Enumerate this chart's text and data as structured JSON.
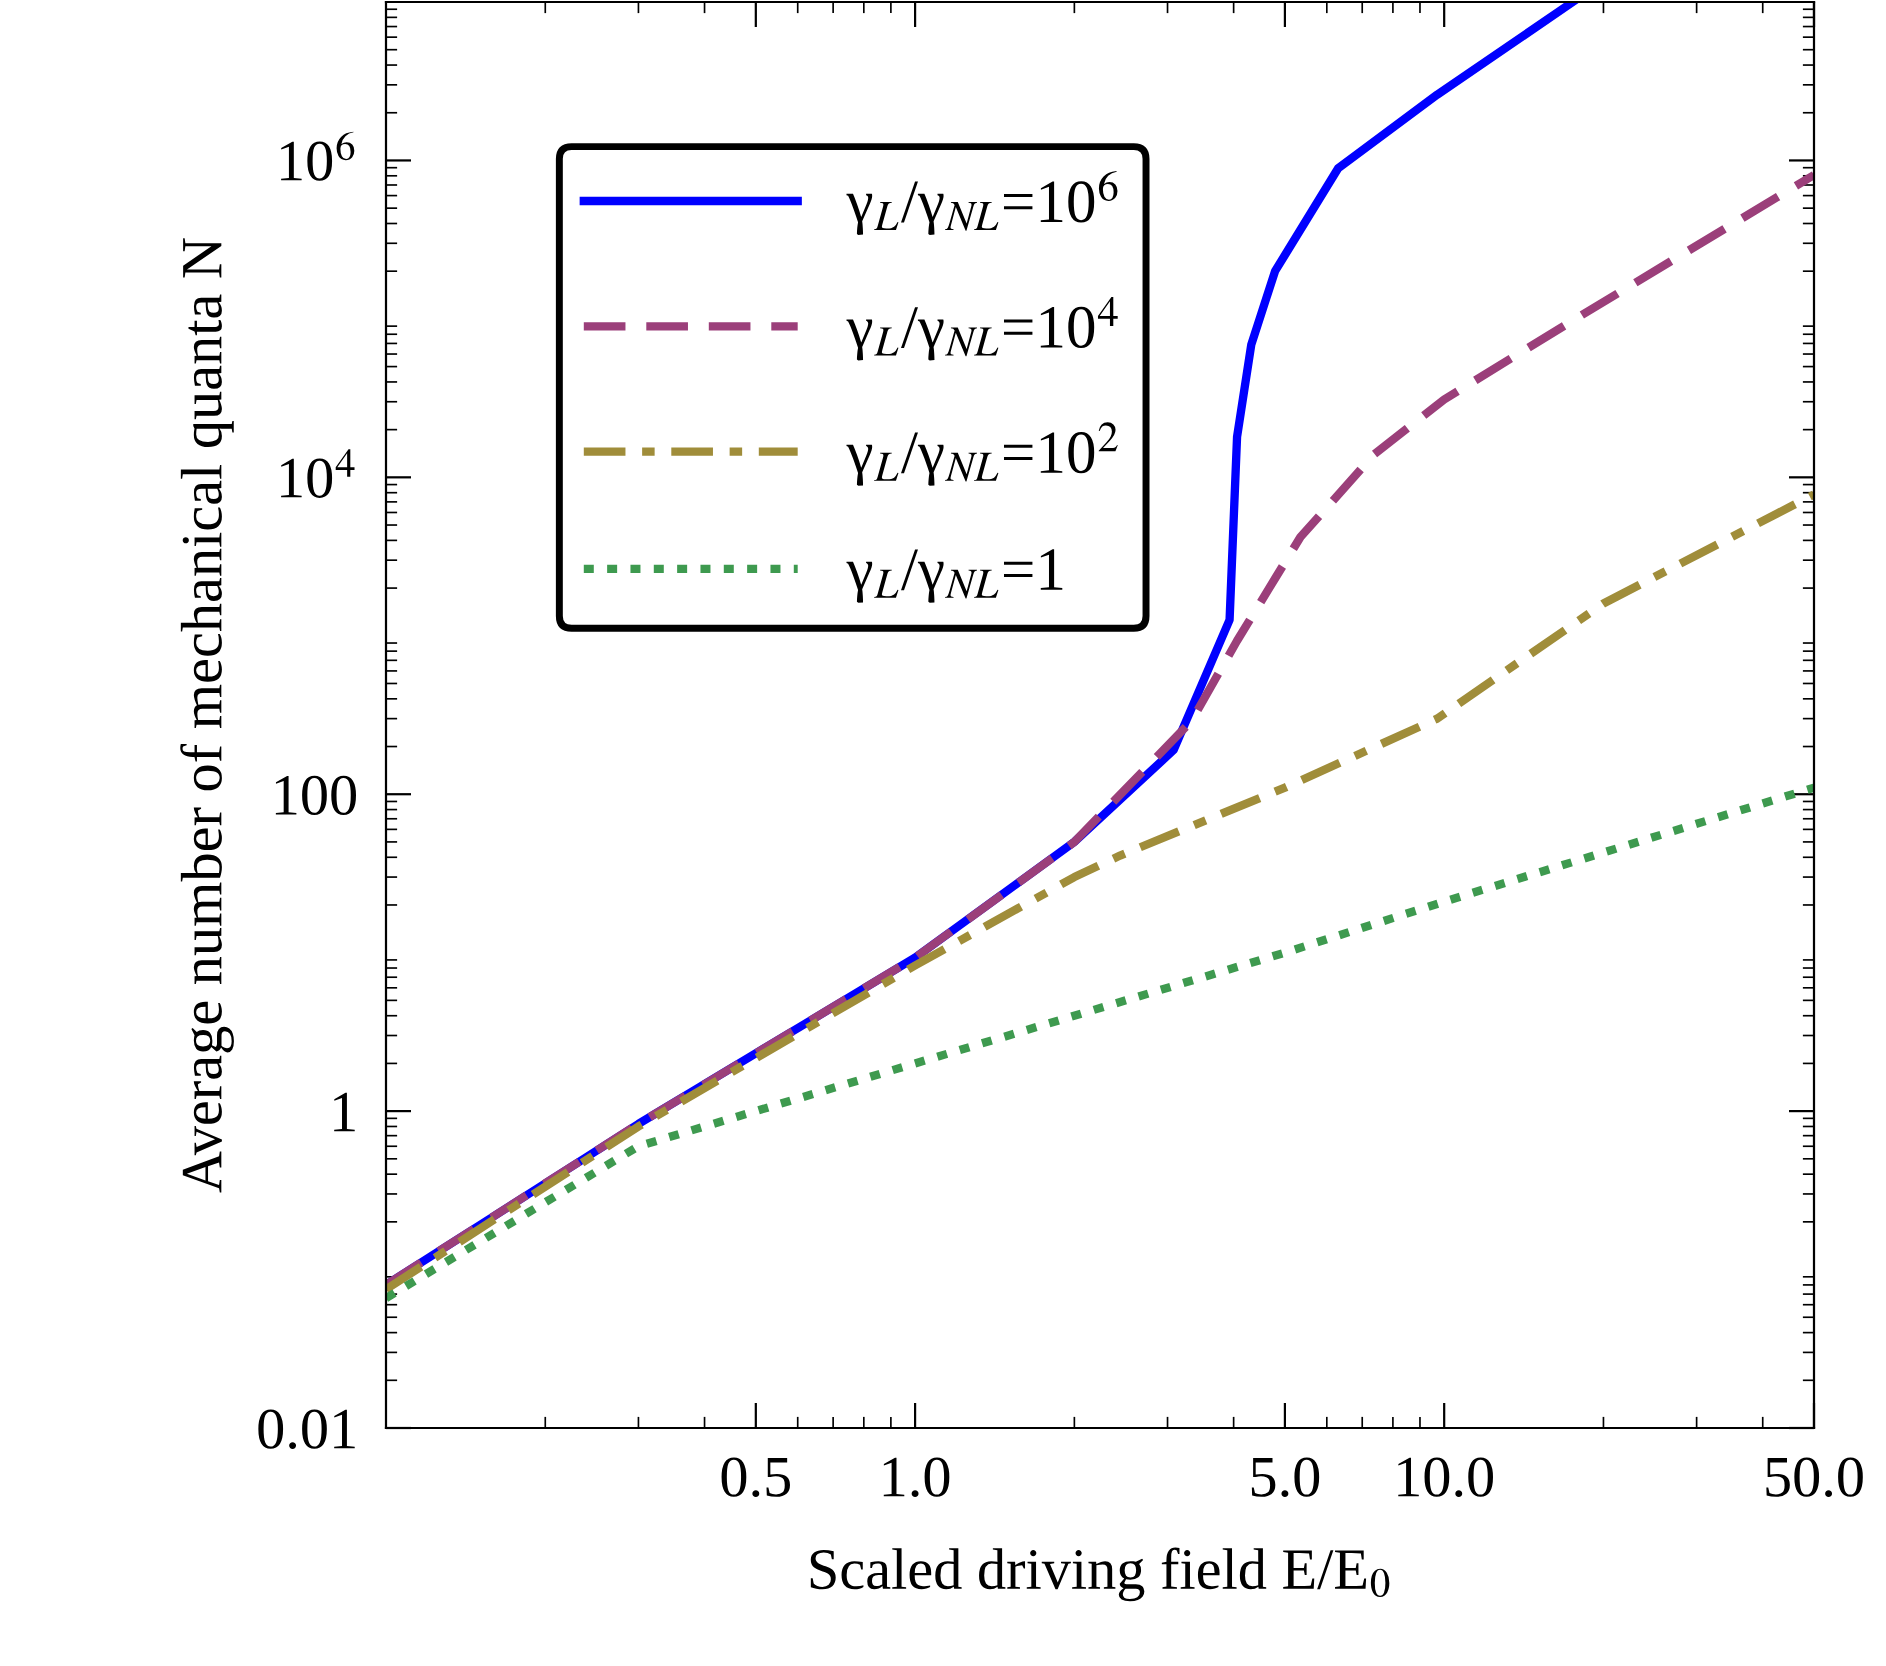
{
  "chart_data": {
    "type": "line",
    "xlabel": "Scaled driving field E/E$_{0}$",
    "ylabel": "Average number of mechanical quanta N",
    "log": "xy",
    "grid": false,
    "legend": "top left",
    "marker": "none",
    "xlim": [
      0.1,
      50
    ],
    "ylim": [
      0.01,
      10000000
    ],
    "xticks": [
      0.5,
      {
        "value": 1,
        "label": "1.0"
      },
      {
        "value": 5,
        "label": "5.0"
      },
      {
        "value": 10,
        "label": "10.0"
      },
      {
        "value": 50,
        "label": "50.0"
      }
    ],
    "yticks": [
      0.01,
      1,
      100,
      {
        "value": 10000,
        "label": "10$^{4}$"
      },
      {
        "value": 1000000,
        "label": "10$^{6}$"
      }
    ],
    "series": [
      {
        "name": "γ$_{L}$/γ$_{NL}$=10$^{6}$",
        "color": "#0000ff",
        "line_style": "solid",
        "x": [
          0.1,
          0.3,
          1,
          2,
          3.08,
          3.93,
          4.06,
          4.32,
          4.79,
          6.3,
          9.7,
          17.5
        ],
        "values": [
          0.08,
          0.83,
          9.3,
          50,
          190,
          1260,
          18000,
          69000,
          200000,
          890000,
          2600000,
          10000000
        ]
      },
      {
        "name": "γ$_{L}$/γ$_{NL}$=10$^{4}$",
        "color": "#9b3f7a",
        "line_style": "dashed",
        "x": [
          0.1,
          0.3,
          1,
          2,
          3.33,
          4.06,
          5.35,
          7.38,
          10,
          17.7,
          50
        ],
        "values": [
          0.08,
          0.83,
          9.3,
          50,
          290,
          930,
          4200,
          14000,
          31000,
          100000,
          810000
        ]
      },
      {
        "name": "γ$_{L}$/γ$_{NL}$=10$^{2}$",
        "color": "#a08d3a",
        "line_style": "dashdot",
        "x": [
          0.1,
          0.3,
          1,
          2,
          2.44,
          5,
          9.7,
          20,
          50
        ],
        "values": [
          0.075,
          0.8,
          8.3,
          30,
          41,
          110,
          300,
          1600,
          7800
        ]
      },
      {
        "name": "γ$_{L}$/γ$_{NL}$=1",
        "color": "#3e9a4f",
        "line_style": "dotted",
        "x": [
          0.1,
          0.3,
          1,
          5,
          10,
          50
        ],
        "values": [
          0.066,
          0.6,
          2.0,
          10,
          21,
          110
        ]
      }
    ]
  }
}
